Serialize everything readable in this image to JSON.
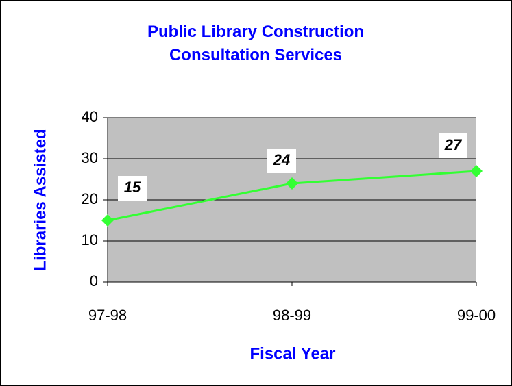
{
  "chart_data": {
    "type": "line",
    "title": "Public Library Construction Consultation Services",
    "categories": [
      "97-98",
      "98-99",
      "99-00"
    ],
    "series": [
      {
        "name": "Libraries Assisted",
        "color": "#33ff33",
        "values": [
          15,
          24,
          27
        ]
      }
    ],
    "xlabel": "Fiscal Year",
    "ylabel": "Libraries Assisted",
    "ylim": [
      0,
      40
    ],
    "yticks": [
      0,
      10,
      20,
      30,
      40
    ],
    "grid": true,
    "plot_background": "#c0c0c0"
  }
}
